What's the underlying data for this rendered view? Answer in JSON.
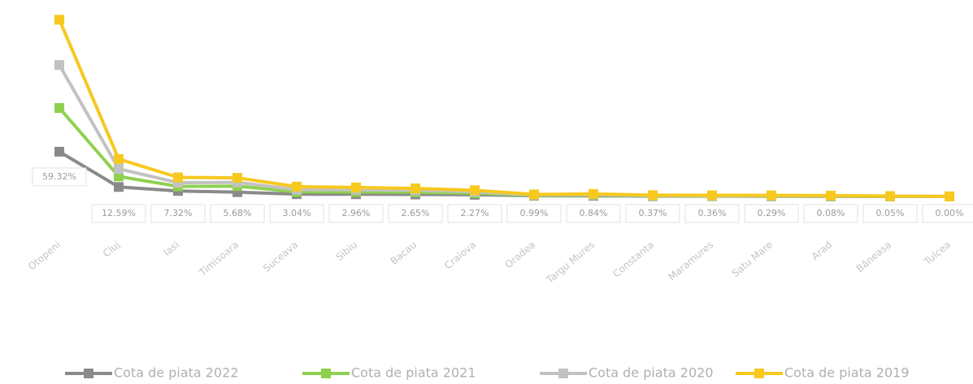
{
  "chart_data": {
    "type": "line",
    "stacked": true,
    "categories": [
      "Otopeni",
      "Cluj",
      "Iasi",
      "Timisoara",
      "Suceava",
      "Sibiu",
      "Bacau",
      "Craiova",
      "Oradea",
      "Targu Mures",
      "Constanta",
      "Maramures",
      "Satu Mare",
      "Arad",
      "Băneasa",
      "Tulcea"
    ],
    "series": [
      {
        "name": "Cota de piata 2022",
        "color": "#8a8a8a",
        "values": [
          59.32,
          12.59,
          7.32,
          5.68,
          3.04,
          2.96,
          2.65,
          2.27,
          0.99,
          0.84,
          0.37,
          0.36,
          0.29,
          0.08,
          0.05,
          0.0
        ],
        "value_labels": [
          "59.32%",
          "12.59%",
          "7.32%",
          "5.68%",
          "3.04%",
          "2.96%",
          "2.65%",
          "2.27%",
          "0.99%",
          "0.84%",
          "0.37%",
          "0.36%",
          "0.29%",
          "0.08%",
          "0.05%",
          "0.00%"
        ]
      },
      {
        "name": "Cota de piata 2021",
        "color": "#8fd14f",
        "values": [
          58,
          14,
          6,
          8,
          3,
          3,
          3,
          2,
          0.5,
          0.9,
          0.4,
          0.3,
          0.4,
          0.3,
          0.1,
          0.05
        ]
      },
      {
        "name": "Cota de piata 2020",
        "color": "#c2c2c2",
        "values": [
          57,
          10,
          5,
          5,
          3,
          3,
          2.5,
          2,
          0.6,
          0.8,
          0.5,
          0.4,
          0.4,
          0.4,
          0.2,
          0.05
        ]
      },
      {
        "name": "Cota de piata 2019",
        "color": "#f7c81e",
        "values": [
          60,
          13,
          7,
          6,
          4,
          3,
          2.5,
          2,
          0.6,
          0.8,
          0.5,
          0.5,
          0.4,
          0.4,
          0.2,
          0.05
        ]
      }
    ],
    "ylim": [
      0,
      240
    ]
  }
}
